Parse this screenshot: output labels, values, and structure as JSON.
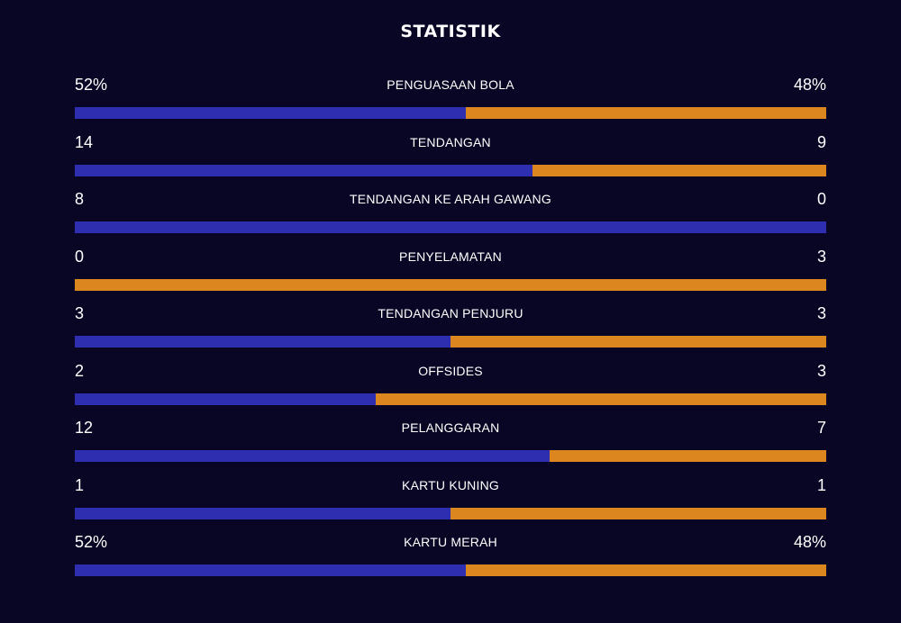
{
  "title": "STATISTIK",
  "colors": {
    "home": "#2e2fb0",
    "away": "#db861f",
    "background": "#080624"
  },
  "stats": [
    {
      "label": "PENGUASAAN BOLA",
      "home": "52%",
      "away": "48%",
      "home_share": 0.52
    },
    {
      "label": "TENDANGAN",
      "home": "14",
      "away": "9",
      "home_share": 0.609
    },
    {
      "label": "TENDANGAN KE ARAH GAWANG",
      "home": "8",
      "away": "0",
      "home_share": 1.0
    },
    {
      "label": "PENYELAMATAN",
      "home": "0",
      "away": "3",
      "home_share": 0.0
    },
    {
      "label": "TENDANGAN PENJURU",
      "home": "3",
      "away": "3",
      "home_share": 0.5
    },
    {
      "label": "OFFSIDES",
      "home": "2",
      "away": "3",
      "home_share": 0.4
    },
    {
      "label": "PELANGGARAN",
      "home": "12",
      "away": "7",
      "home_share": 0.632
    },
    {
      "label": "KARTU KUNING",
      "home": "1",
      "away": "1",
      "home_share": 0.5
    },
    {
      "label": "KARTU MERAH",
      "home": "52%",
      "away": "48%",
      "home_share": 0.52
    }
  ]
}
